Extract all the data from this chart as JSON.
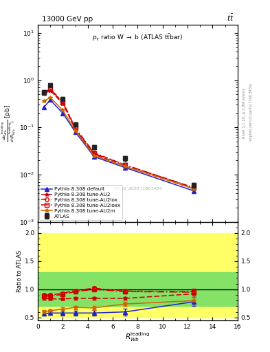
{
  "title_top": "13000 GeV pp",
  "title_right": "tt",
  "plot_title": "p$_T$ ratio W → b (ATLAS t$\\bar{t}$bar)",
  "ylabel_main": "d$\\sigma$/d($R_{Wb}^{\\rm leading}$) [pb]",
  "ylabel_ratio": "Ratio to ATLAS",
  "xlabel": "$R_{Wb}^{\\rm leading}$",
  "right_label1": "Rivet 3.1.10, ≥ 2.8M events",
  "right_label2": "mcplots.cern.ch [arXiv:1306.3436]",
  "watermark": "ATLAS_2020_I1801434",
  "x_values": [
    0.5,
    1.0,
    2.0,
    3.0,
    4.5,
    7.0,
    12.5
  ],
  "atlas_y": [
    0.55,
    0.78,
    0.4,
    0.115,
    0.038,
    0.022,
    0.006
  ],
  "atlas_yerr": [
    0.06,
    0.07,
    0.04,
    0.012,
    0.004,
    0.003,
    0.0007
  ],
  "pythia_default_y": [
    0.27,
    0.38,
    0.2,
    0.08,
    0.024,
    0.014,
    0.0045
  ],
  "pythia_au2_y": [
    0.52,
    0.6,
    0.32,
    0.092,
    0.027,
    0.015,
    0.005
  ],
  "pythia_au2lox_y": [
    0.56,
    0.65,
    0.35,
    0.098,
    0.029,
    0.016,
    0.0053
  ],
  "pythia_au2loxx_y": [
    0.54,
    0.63,
    0.34,
    0.096,
    0.028,
    0.016,
    0.0052
  ],
  "pythia_au2m_y": [
    0.36,
    0.43,
    0.23,
    0.086,
    0.025,
    0.015,
    0.005
  ],
  "ratio_default": [
    0.57,
    0.58,
    0.58,
    0.58,
    0.58,
    0.6,
    0.78
  ],
  "ratio_au2": [
    0.84,
    0.83,
    0.83,
    0.84,
    0.84,
    0.84,
    0.92
  ],
  "ratio_au2lox": [
    0.9,
    0.9,
    0.93,
    0.98,
    1.02,
    0.97,
    0.96
  ],
  "ratio_au2loxx": [
    0.88,
    0.88,
    0.91,
    0.96,
    1.0,
    0.96,
    0.95
  ],
  "ratio_au2m": [
    0.6,
    0.62,
    0.65,
    0.68,
    0.67,
    0.74,
    0.8
  ],
  "ratio_default_err": [
    0.04,
    0.03,
    0.04,
    0.04,
    0.05,
    0.06,
    0.08
  ],
  "ratio_au2_err": [
    0.02,
    0.02,
    0.02,
    0.02,
    0.03,
    0.03,
    0.05
  ],
  "ratio_au2lox_err": [
    0.02,
    0.02,
    0.02,
    0.02,
    0.03,
    0.03,
    0.05
  ],
  "ratio_au2loxx_err": [
    0.02,
    0.02,
    0.02,
    0.02,
    0.03,
    0.03,
    0.05
  ],
  "ratio_au2m_err": [
    0.03,
    0.02,
    0.03,
    0.03,
    0.04,
    0.04,
    0.06
  ],
  "band_yellow": [
    0.5,
    2.0
  ],
  "band_green": [
    0.7,
    1.3
  ],
  "xmin": 0,
  "xmax": 16,
  "ylim_main": [
    0.001,
    15.0
  ],
  "ylim_ratio": [
    0.45,
    2.2
  ],
  "color_atlas": "#222222",
  "color_default": "#2222cc",
  "color_au2": "#cc0000",
  "color_au2lox": "#cc0000",
  "color_au2loxx": "#cc0000",
  "color_au2m": "#cc6600"
}
